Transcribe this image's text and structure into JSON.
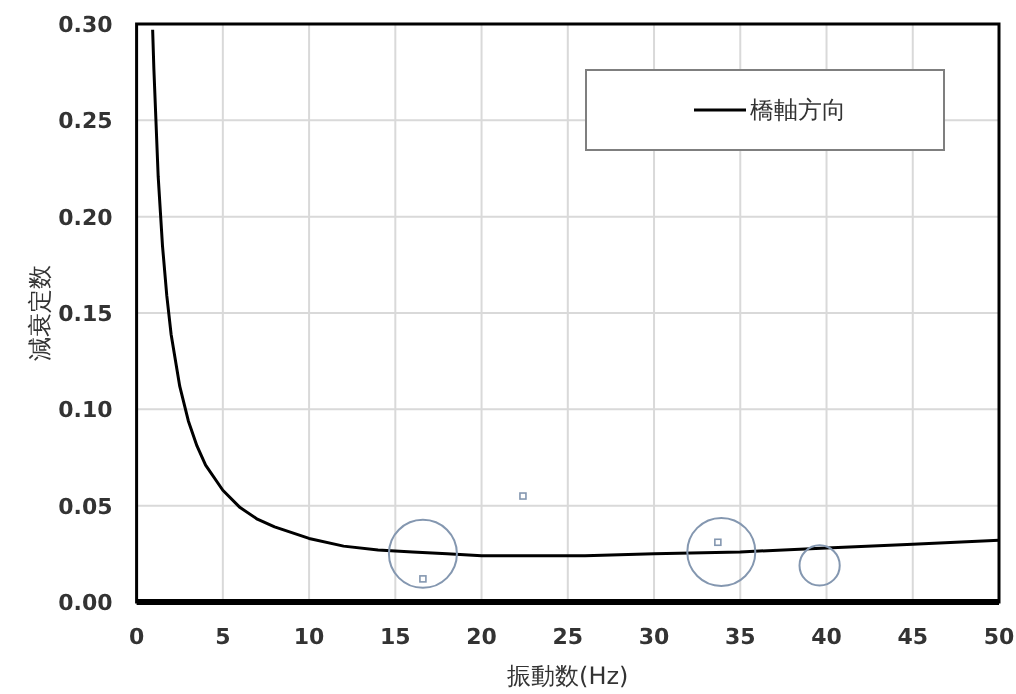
{
  "chart_data": {
    "type": "line",
    "xlabel": "振動数(Hz)",
    "ylabel": "減衰定数",
    "xlim": [
      0,
      50
    ],
    "ylim": [
      0,
      0.3
    ],
    "xticks": [
      0,
      5,
      10,
      15,
      20,
      25,
      30,
      35,
      40,
      45,
      50
    ],
    "yticks": [
      {
        "value": 0,
        "label": "0.00"
      },
      {
        "value": 0.05,
        "label": "0.05"
      },
      {
        "value": 0.1,
        "label": "0.10"
      },
      {
        "value": 0.15,
        "label": "0.15"
      },
      {
        "value": 0.2,
        "label": "0.20"
      },
      {
        "value": 0.25,
        "label": "0.25"
      },
      {
        "value": 0.3,
        "label": "0.30"
      }
    ],
    "grid": true,
    "legend": "top right",
    "series": [
      {
        "name": "橋軸方向",
        "color": "#000000",
        "x": [
          0.93,
          1,
          1.25,
          1.5,
          1.75,
          2,
          2.5,
          3,
          3.5,
          4,
          5,
          6,
          7,
          8,
          10,
          12,
          14,
          16,
          18,
          20,
          23,
          26,
          30,
          35,
          40,
          45,
          50
        ],
        "values": [
          0.297,
          0.277,
          0.221,
          0.185,
          0.159,
          0.139,
          0.112,
          0.094,
          0.081,
          0.071,
          0.058,
          0.049,
          0.043,
          0.039,
          0.033,
          0.029,
          0.027,
          0.026,
          0.025,
          0.024,
          0.024,
          0.024,
          0.025,
          0.026,
          0.028,
          0.03,
          0.032
        ]
      },
      {
        "type": "bubble",
        "color": "#8497b0",
        "x": [
          16.6,
          33.9,
          39.6
        ],
        "values": [
          0.025,
          0.026,
          0.019
        ],
        "sizes": [
          1,
          1,
          0.35
        ]
      },
      {
        "type": "scatter",
        "marker": "square",
        "color": "#8497b0",
        "x": [
          16.6,
          22.4,
          33.7
        ],
        "values": [
          0.012,
          0.055,
          0.031
        ]
      }
    ]
  }
}
